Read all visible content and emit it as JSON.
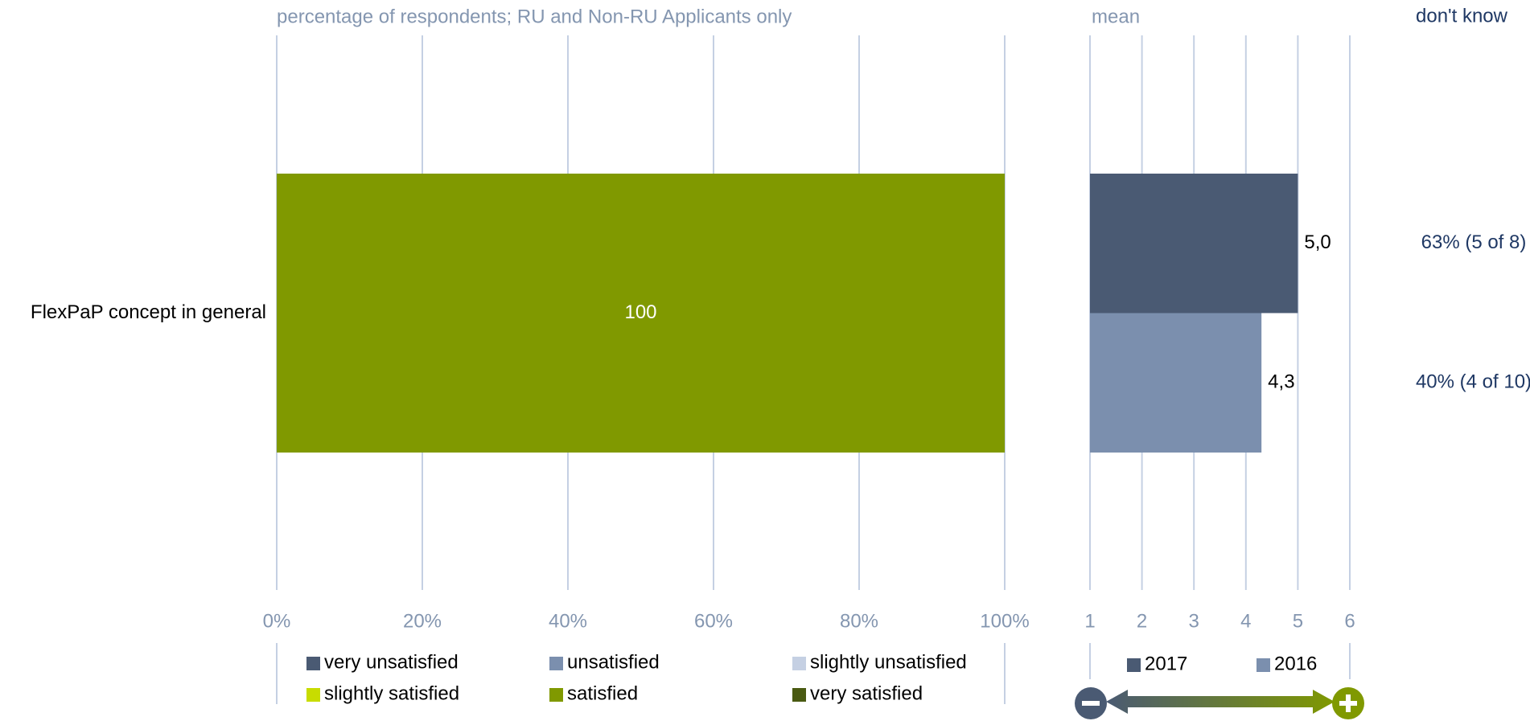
{
  "chart_data": [
    {
      "type": "stacked_bar",
      "title": "percentage of respondents; RU and Non-RU Applicants only",
      "categories": [
        "FlexPaP concept in general"
      ],
      "series": [
        {
          "name": "very unsatisfied",
          "color": "#4a5a73",
          "values": [
            0
          ]
        },
        {
          "name": "unsatisfied",
          "color": "#7b8fae",
          "values": [
            0
          ]
        },
        {
          "name": "slightly unsatisfied",
          "color": "#c5d0e3",
          "values": [
            0
          ]
        },
        {
          "name": "slightly satisfied",
          "color": "#c8dc00",
          "values": [
            0
          ]
        },
        {
          "name": "satisfied",
          "color": "#809900",
          "values": [
            100
          ]
        },
        {
          "name": "very satisfied",
          "color": "#4a5a12",
          "values": [
            0
          ]
        }
      ],
      "xlim": [
        0,
        100
      ],
      "xticks": [
        {
          "value": 0,
          "label": "0%"
        },
        {
          "value": 20,
          "label": "20%"
        },
        {
          "value": 40,
          "label": "40%"
        },
        {
          "value": 60,
          "label": "60%"
        },
        {
          "value": 80,
          "label": "80%"
        },
        {
          "value": 100,
          "label": "100%"
        }
      ],
      "grid": true
    },
    {
      "type": "bar",
      "title": "mean",
      "series": [
        {
          "name": "2017",
          "color": "#4a5a73",
          "values": [
            5.0
          ],
          "value_labels": [
            "5,0"
          ]
        },
        {
          "name": "2016",
          "color": "#7b8fae",
          "values": [
            4.3
          ],
          "value_labels": [
            "4,3"
          ]
        }
      ],
      "xlim": [
        1,
        6
      ],
      "xticks": [
        1,
        2,
        3,
        4,
        5,
        6
      ],
      "grid": true,
      "dont_know": {
        "title": "don't know",
        "labels": [
          "63% (5 of 8)",
          "40% (4 of 10)"
        ]
      }
    }
  ]
}
